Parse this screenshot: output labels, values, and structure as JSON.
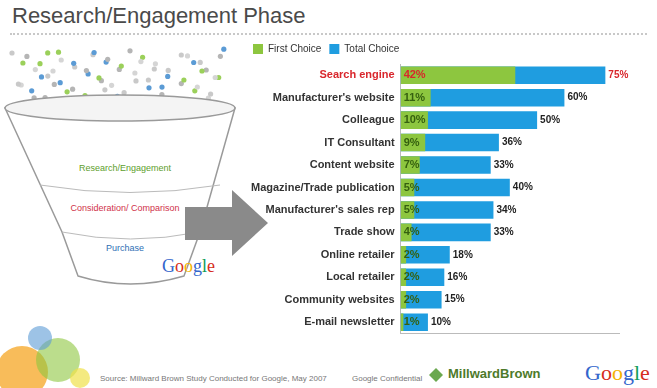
{
  "chart_data": {
    "type": "bar",
    "title": "Research/Engagement Phase",
    "orientation": "horizontal",
    "categories": [
      "Search engine",
      "Manufacturer's website",
      "Colleague",
      "IT Consultant",
      "Content website",
      "Magazine/Trade publication",
      "Manufacturer's sales rep",
      "Trade show",
      "Online retailer",
      "Local retailer",
      "Community websites",
      "E-mail newsletter"
    ],
    "series": [
      {
        "name": "First Choice",
        "color": "#8dc63f",
        "values": [
          42,
          11,
          10,
          9,
          7,
          5,
          5,
          4,
          2,
          2,
          2,
          1
        ],
        "value_labels": [
          "42%",
          "11%",
          "10%",
          "9%",
          "7%",
          "5%",
          "5%",
          "4%",
          "2%",
          "2%",
          "2%",
          "1%"
        ]
      },
      {
        "name": "Total Choice",
        "color": "#1f9de0",
        "values": [
          75,
          60,
          50,
          36,
          33,
          40,
          34,
          33,
          18,
          16,
          15,
          10
        ],
        "value_labels": [
          "75%",
          "60%",
          "50%",
          "36%",
          "33%",
          "40%",
          "34%",
          "33%",
          "18%",
          "16%",
          "15%",
          "10%"
        ]
      }
    ],
    "xlim": [
      0,
      80
    ],
    "tick_labels": "y",
    "grid": false,
    "legend": "top-left",
    "data_labels": true,
    "stacked": false
  },
  "funnel": {
    "stages": [
      "Research/Engagement",
      "Consideration/ Comparison",
      "Purchase"
    ],
    "logo": "Google"
  },
  "footer": {
    "source": "Source: Millward Brown Study Conducted for Google, May 2007",
    "confidential": "Google Confidential",
    "logos": [
      "MillwardBrown",
      "Google"
    ]
  }
}
